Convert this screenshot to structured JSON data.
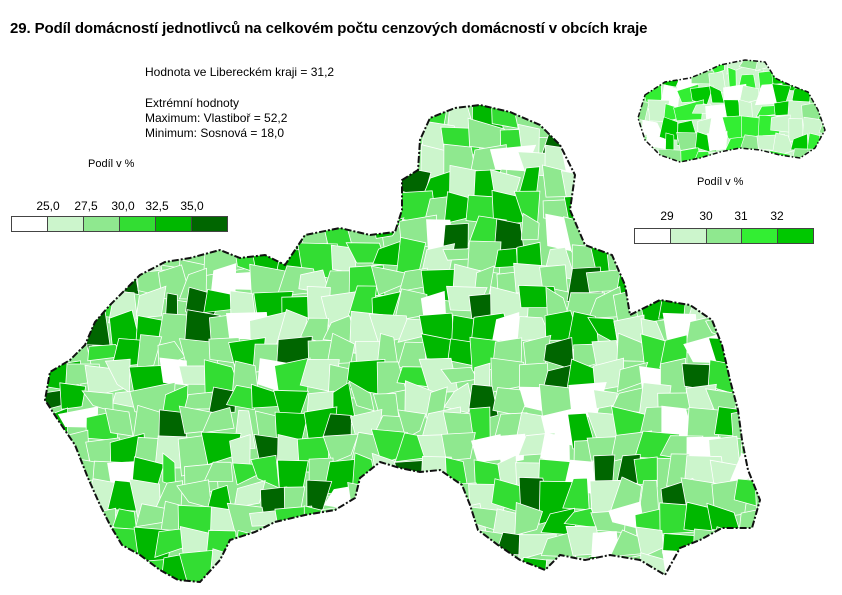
{
  "title": "29. Podíl domácností jednotlivců na celkovém počtu cenzových domácností v obcích kraje",
  "info": {
    "region_value": "Hodnota ve Libereckém  kraji = 31,2",
    "extremes_heading": "Extrémní hodnoty",
    "maximum": "Maximum: Vlastiboř = 52,2",
    "minimum": "Minimum: Sosnová = 18,0"
  },
  "main_legend": {
    "title": "Podíl v %",
    "labels": [
      "25,0",
      "27,5",
      "30,0",
      "32,5",
      "35,0"
    ],
    "colors": [
      "#ffffff",
      "#ccf5cc",
      "#8fe88f",
      "#33dd33",
      "#00b800",
      "#006600"
    ]
  },
  "inset_legend": {
    "title": "Podíl v %",
    "labels": [
      "29",
      "30",
      "31",
      "32"
    ],
    "colors": [
      "#ffffff",
      "#ccf5cc",
      "#8fe88f",
      "#33ee33",
      "#00c800"
    ]
  },
  "map": {
    "region": "Liberecký kraj",
    "border_color": "#111111"
  }
}
